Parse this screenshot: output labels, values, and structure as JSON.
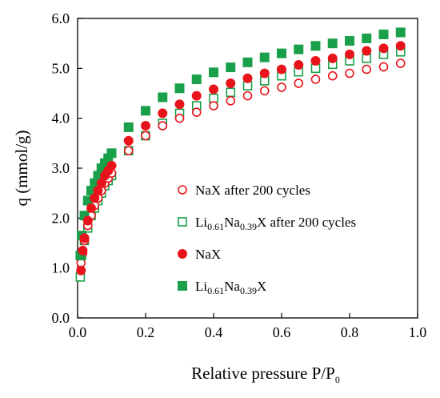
{
  "chart_data": {
    "type": "scatter",
    "xlabel_main": "Relative pressure P/P",
    "xlabel_sub": "0",
    "ylabel": "q (mmol/g)",
    "xlim": [
      0,
      1.0
    ],
    "ylim": [
      0,
      6.0
    ],
    "x_ticks": [
      "0.0",
      "0.2",
      "0.4",
      "0.6",
      "0.8",
      "1.0"
    ],
    "y_ticks": [
      "0.0",
      "1.0",
      "2.0",
      "3.0",
      "4.0",
      "5.0",
      "6.0"
    ],
    "legend_position": "center-right",
    "series": [
      {
        "name": "NaX after 200 cycles",
        "legend": [
          {
            "t": "NaX after 200 cycles",
            "sub": false
          }
        ],
        "marker": "circle",
        "filled": false,
        "color": "#e8141b",
        "x": [
          0.01,
          0.015,
          0.02,
          0.03,
          0.04,
          0.05,
          0.06,
          0.07,
          0.08,
          0.09,
          0.1,
          0.15,
          0.2,
          0.25,
          0.3,
          0.35,
          0.4,
          0.45,
          0.5,
          0.55,
          0.6,
          0.65,
          0.7,
          0.75,
          0.8,
          0.85,
          0.9,
          0.95
        ],
        "y": [
          1.1,
          1.3,
          1.55,
          1.85,
          2.05,
          2.25,
          2.4,
          2.55,
          2.7,
          2.8,
          2.9,
          3.35,
          3.65,
          3.85,
          4.0,
          4.12,
          4.25,
          4.35,
          4.45,
          4.55,
          4.62,
          4.7,
          4.78,
          4.85,
          4.9,
          4.98,
          5.03,
          5.1
        ]
      },
      {
        "name": "Li0.61Na0.39X after 200 cycles",
        "legend": [
          {
            "t": "Li",
            "sub": false
          },
          {
            "t": "0.61",
            "sub": true
          },
          {
            "t": "Na",
            "sub": false
          },
          {
            "t": "0.39",
            "sub": true
          },
          {
            "t": "X after 200 cycles",
            "sub": false
          }
        ],
        "marker": "square",
        "filled": false,
        "color": "#1aa04a",
        "x": [
          0.008,
          0.012,
          0.02,
          0.03,
          0.04,
          0.05,
          0.06,
          0.07,
          0.08,
          0.09,
          0.1,
          0.15,
          0.2,
          0.25,
          0.3,
          0.35,
          0.4,
          0.45,
          0.5,
          0.55,
          0.6,
          0.65,
          0.7,
          0.75,
          0.8,
          0.85,
          0.9,
          0.95
        ],
        "y": [
          0.82,
          1.25,
          1.55,
          1.8,
          2.05,
          2.2,
          2.35,
          2.5,
          2.65,
          2.75,
          2.85,
          3.35,
          3.65,
          3.9,
          4.1,
          4.25,
          4.4,
          4.52,
          4.65,
          4.75,
          4.85,
          4.93,
          5.0,
          5.08,
          5.15,
          5.2,
          5.28,
          5.33
        ]
      },
      {
        "name": "NaX",
        "legend": [
          {
            "t": "NaX",
            "sub": false
          }
        ],
        "marker": "circle",
        "filled": true,
        "color": "#e8141b",
        "x": [
          0.01,
          0.015,
          0.02,
          0.03,
          0.04,
          0.05,
          0.06,
          0.07,
          0.08,
          0.09,
          0.1,
          0.15,
          0.2,
          0.25,
          0.3,
          0.35,
          0.4,
          0.45,
          0.5,
          0.55,
          0.6,
          0.65,
          0.7,
          0.75,
          0.8,
          0.85,
          0.9,
          0.95
        ],
        "y": [
          0.95,
          1.35,
          1.6,
          1.95,
          2.2,
          2.4,
          2.55,
          2.7,
          2.85,
          2.95,
          3.05,
          3.55,
          3.85,
          4.1,
          4.28,
          4.45,
          4.58,
          4.7,
          4.8,
          4.9,
          4.98,
          5.07,
          5.15,
          5.2,
          5.28,
          5.35,
          5.4,
          5.45
        ]
      },
      {
        "name": "Li0.61Na0.39X",
        "legend": [
          {
            "t": "Li",
            "sub": false
          },
          {
            "t": "0.61",
            "sub": true
          },
          {
            "t": "Na",
            "sub": false
          },
          {
            "t": "0.39",
            "sub": true
          },
          {
            "t": "X",
            "sub": false
          }
        ],
        "marker": "square",
        "filled": true,
        "color": "#1aa04a",
        "x": [
          0.008,
          0.012,
          0.02,
          0.03,
          0.04,
          0.05,
          0.06,
          0.07,
          0.08,
          0.09,
          0.1,
          0.15,
          0.2,
          0.25,
          0.3,
          0.35,
          0.4,
          0.45,
          0.5,
          0.55,
          0.6,
          0.65,
          0.7,
          0.75,
          0.8,
          0.85,
          0.9,
          0.95
        ],
        "y": [
          1.25,
          1.65,
          2.05,
          2.35,
          2.55,
          2.7,
          2.85,
          3.0,
          3.1,
          3.2,
          3.3,
          3.82,
          4.15,
          4.42,
          4.6,
          4.78,
          4.92,
          5.02,
          5.12,
          5.22,
          5.3,
          5.38,
          5.45,
          5.5,
          5.55,
          5.6,
          5.68,
          5.72
        ]
      }
    ]
  }
}
